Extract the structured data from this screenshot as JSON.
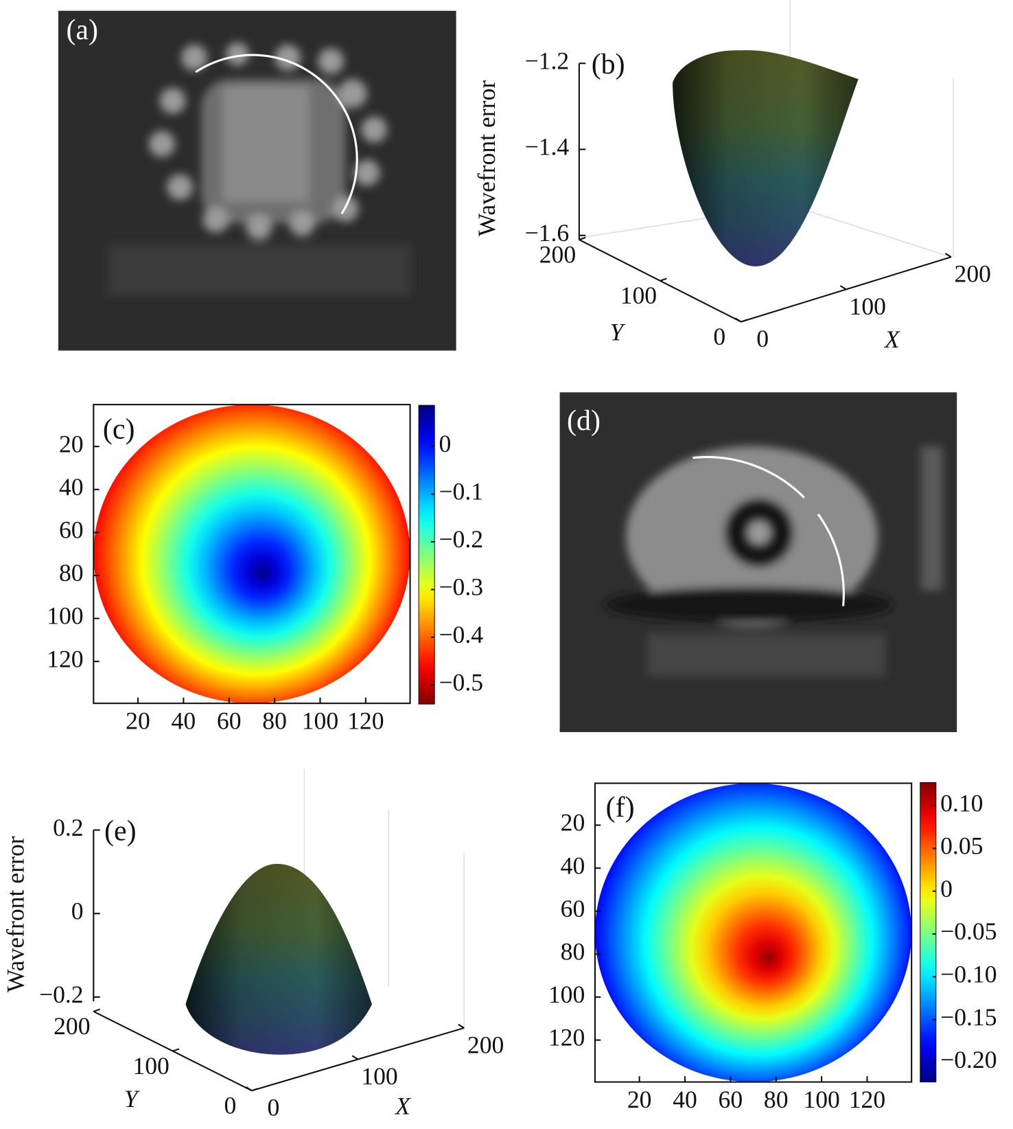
{
  "chart_data": [
    {
      "type": "image",
      "label": "(a)"
    },
    {
      "type": "surface3d",
      "label": "(b)",
      "zlabel": "Wavefront error",
      "xlabel": "X",
      "ylabel": "Y",
      "zlim": [
        -1.6,
        -1.2
      ],
      "zticks": [
        {
          "value": -1.2,
          "label": "−1.2"
        },
        {
          "value": -1.4,
          "label": "−1.4"
        },
        {
          "value": -1.6,
          "label": "−1.6"
        }
      ],
      "xlim": [
        0,
        200
      ],
      "xticks": [
        0,
        100,
        200
      ],
      "ylim": [
        0,
        200
      ],
      "yticks": [
        0,
        100,
        200
      ]
    },
    {
      "type": "heatmap",
      "label": "(c)",
      "xlim": [
        0.5,
        139.5
      ],
      "ylim": [
        0.5,
        139.5
      ],
      "xticks": [
        20,
        40,
        60,
        80,
        100,
        120
      ],
      "yticks": [
        20,
        40,
        60,
        80,
        100,
        120
      ],
      "colormap": "jet",
      "reverse_colormap": true,
      "clim": [
        -0.54,
        0.086
      ],
      "cticks": [
        0,
        {
          "value": -0.1,
          "label": "−0.1"
        },
        {
          "value": -0.2,
          "label": "−0.2"
        },
        {
          "value": -0.3,
          "label": "−0.3"
        },
        {
          "value": -0.4,
          "label": "−0.4"
        },
        {
          "value": -0.5,
          "label": "−0.5"
        }
      ],
      "peak": [
        75,
        79
      ],
      "peak_value": 0.08,
      "edge_value": -0.5
    },
    {
      "type": "image",
      "label": "(d)"
    },
    {
      "type": "surface3d",
      "label": "(e)",
      "zlabel": "Wavefront error",
      "xlabel": "X",
      "ylabel": "Y",
      "zlim": [
        -0.2,
        0.2
      ],
      "zticks": [
        0.2,
        0,
        {
          "value": -0.2,
          "label": "−0.2"
        }
      ],
      "xlim": [
        0,
        200
      ],
      "xticks": [
        0,
        100,
        200
      ],
      "ylim": [
        0,
        200
      ],
      "yticks": [
        0,
        100,
        200
      ]
    },
    {
      "type": "heatmap",
      "label": "(f)",
      "xlim": [
        0.5,
        139.5
      ],
      "ylim": [
        0.5,
        139.5
      ],
      "xticks": [
        20,
        40,
        60,
        80,
        100,
        120
      ],
      "yticks": [
        20,
        40,
        60,
        80,
        100,
        120
      ],
      "colormap": "jet",
      "reverse_colormap": false,
      "clim": [
        -0.223,
        0.127
      ],
      "cticks": [
        {
          "value": 0.1,
          "label": "0.10"
        },
        0.05,
        0,
        {
          "value": -0.05,
          "label": "−0.05"
        },
        {
          "value": -0.1,
          "label": "−0.10"
        },
        {
          "value": -0.15,
          "label": "−0.15"
        },
        {
          "value": -0.2,
          "label": "−0.20"
        }
      ],
      "peak": [
        77,
        82
      ],
      "peak_value": 0.12,
      "edge_value": -0.2
    }
  ]
}
